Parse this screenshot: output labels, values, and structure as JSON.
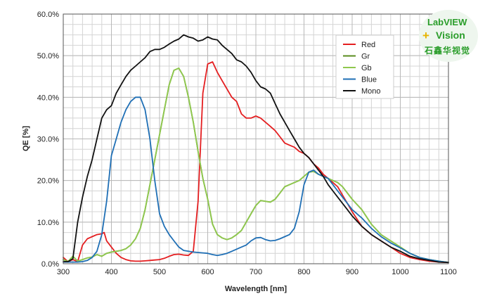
{
  "logo": {
    "line1": "LabVIEW",
    "plus": "+",
    "line2": "Vision",
    "line3": "石鑫华视觉"
  },
  "chart_data": {
    "type": "line",
    "xlabel": "Wavelength [nm]",
    "ylabel": "QE [%]",
    "xlim": [
      300,
      1100
    ],
    "ylim": [
      0,
      60
    ],
    "xticks": [
      300,
      400,
      500,
      600,
      700,
      800,
      900,
      1000,
      1100
    ],
    "yticks": [
      0,
      10,
      20,
      30,
      40,
      50,
      60
    ],
    "xtick_labels": [
      "300",
      "400",
      "500",
      "600",
      "700",
      "800",
      "900",
      "1000",
      "1100"
    ],
    "ytick_labels": [
      "0.0%",
      "10.0%",
      "20.0%",
      "30.0%",
      "40.0%",
      "50.0%",
      "60.0%"
    ],
    "grid": true,
    "legend_position": "top-right",
    "series": [
      {
        "name": "Red",
        "color": "#e41e20",
        "x": [
          300,
          310,
          320,
          330,
          340,
          350,
          360,
          370,
          380,
          385,
          390,
          400,
          410,
          420,
          430,
          440,
          450,
          460,
          470,
          480,
          490,
          500,
          510,
          520,
          530,
          540,
          550,
          560,
          570,
          580,
          590,
          600,
          610,
          620,
          630,
          640,
          650,
          660,
          670,
          680,
          690,
          700,
          710,
          720,
          730,
          740,
          750,
          760,
          770,
          780,
          790,
          800,
          810,
          820,
          830,
          840,
          850,
          860,
          870,
          880,
          890,
          900,
          920,
          940,
          960,
          980,
          1000,
          1020,
          1040,
          1060,
          1080,
          1100
        ],
        "y": [
          1.5,
          0.5,
          1.0,
          0.5,
          4.5,
          6.0,
          6.5,
          7.0,
          7.2,
          7.5,
          5.5,
          4.0,
          2.5,
          1.5,
          1.0,
          0.7,
          0.6,
          0.6,
          0.7,
          0.8,
          0.9,
          1.0,
          1.3,
          1.8,
          2.2,
          2.3,
          2.1,
          2.0,
          3.0,
          15.0,
          41.0,
          48.0,
          48.5,
          46.0,
          44.0,
          42.0,
          40.0,
          39.0,
          36.0,
          35.0,
          35.0,
          35.5,
          35.0,
          34.0,
          33.0,
          32.0,
          30.5,
          29.0,
          28.5,
          28.0,
          27.0,
          26.5,
          25.5,
          24.0,
          23.0,
          21.5,
          20.5,
          19.5,
          18.5,
          16.5,
          14.5,
          12.5,
          9.0,
          7.0,
          5.5,
          4.0,
          2.5,
          1.5,
          1.0,
          0.6,
          0.4,
          0.3
        ]
      },
      {
        "name": "Gr",
        "color": "#5a8c1e",
        "x": [
          300,
          310,
          320,
          330,
          340,
          350,
          360,
          370,
          380,
          390,
          400,
          410,
          420,
          430,
          440,
          450,
          460,
          470,
          480,
          490,
          500,
          510,
          520,
          530,
          540,
          550,
          560,
          570,
          580,
          590,
          600,
          610,
          620,
          630,
          640,
          650,
          660,
          670,
          680,
          690,
          700,
          710,
          720,
          730,
          740,
          750,
          760,
          770,
          780,
          790,
          800,
          810,
          820,
          830,
          840,
          850,
          860,
          870,
          880,
          890,
          900,
          920,
          940,
          960,
          980,
          1000,
          1020,
          1040,
          1060,
          1080,
          1100
        ],
        "y": [
          1.0,
          0.5,
          1.8,
          0.6,
          1.0,
          1.4,
          1.6,
          2.2,
          1.8,
          2.5,
          2.8,
          3.0,
          3.2,
          3.6,
          4.5,
          6.0,
          8.5,
          13.0,
          19.0,
          25.0,
          31.0,
          37.0,
          43.0,
          46.5,
          47.0,
          45.0,
          40.0,
          34.0,
          27.0,
          20.5,
          15.5,
          9.5,
          7.0,
          6.2,
          5.8,
          6.2,
          7.0,
          8.0,
          10.0,
          12.0,
          14.0,
          15.2,
          15.0,
          14.8,
          15.5,
          17.0,
          18.5,
          19.0,
          19.5,
          20.0,
          21.0,
          22.0,
          22.2,
          21.5,
          21.0,
          20.5,
          20.0,
          19.5,
          18.5,
          17.0,
          15.5,
          13.0,
          9.5,
          7.0,
          5.5,
          4.0,
          2.5,
          1.5,
          1.0,
          0.6,
          0.3
        ]
      },
      {
        "name": "Gb",
        "color": "#8fc84e",
        "x": [
          300,
          310,
          320,
          330,
          340,
          350,
          360,
          370,
          380,
          390,
          400,
          410,
          420,
          430,
          440,
          450,
          460,
          470,
          480,
          490,
          500,
          510,
          520,
          530,
          540,
          550,
          560,
          570,
          580,
          590,
          600,
          610,
          620,
          630,
          640,
          650,
          660,
          670,
          680,
          690,
          700,
          710,
          720,
          730,
          740,
          750,
          760,
          770,
          780,
          790,
          800,
          810,
          820,
          830,
          840,
          850,
          860,
          870,
          880,
          890,
          900,
          920,
          940,
          960,
          980,
          1000,
          1020,
          1040,
          1060,
          1080,
          1100
        ],
        "y": [
          1.0,
          0.5,
          1.8,
          0.6,
          1.0,
          1.4,
          1.6,
          2.2,
          1.8,
          2.5,
          2.8,
          3.0,
          3.2,
          3.6,
          4.5,
          6.0,
          8.5,
          13.0,
          19.0,
          25.0,
          31.0,
          37.0,
          43.0,
          46.5,
          47.0,
          45.0,
          40.0,
          34.0,
          27.0,
          20.5,
          15.5,
          9.5,
          7.0,
          6.2,
          5.8,
          6.2,
          7.0,
          8.0,
          10.0,
          12.0,
          14.0,
          15.2,
          15.0,
          14.8,
          15.5,
          17.0,
          18.5,
          19.0,
          19.5,
          20.0,
          21.0,
          22.0,
          22.2,
          21.5,
          21.0,
          20.5,
          20.0,
          19.5,
          18.5,
          17.0,
          15.5,
          13.0,
          9.5,
          7.0,
          5.5,
          4.0,
          2.5,
          1.5,
          1.0,
          0.6,
          0.3
        ]
      },
      {
        "name": "Blue",
        "color": "#1f6fb5",
        "x": [
          300,
          310,
          320,
          330,
          340,
          350,
          360,
          370,
          380,
          390,
          400,
          410,
          420,
          430,
          440,
          450,
          460,
          470,
          480,
          490,
          500,
          510,
          520,
          530,
          540,
          550,
          560,
          570,
          580,
          590,
          600,
          610,
          620,
          630,
          640,
          650,
          660,
          670,
          680,
          690,
          700,
          710,
          720,
          730,
          740,
          750,
          760,
          770,
          780,
          790,
          800,
          810,
          820,
          830,
          840,
          850,
          860,
          870,
          880,
          890,
          900,
          920,
          940,
          960,
          980,
          1000,
          1020,
          1040,
          1060,
          1080,
          1100
        ],
        "y": [
          0.4,
          0.4,
          0.4,
          0.4,
          0.5,
          0.8,
          1.5,
          3.0,
          7.0,
          15.0,
          26.0,
          30.0,
          34.0,
          37.0,
          39.0,
          40.0,
          40.0,
          37.0,
          30.0,
          20.0,
          12.0,
          9.0,
          7.0,
          5.5,
          4.0,
          3.2,
          3.0,
          2.8,
          2.7,
          2.6,
          2.5,
          2.2,
          2.0,
          2.2,
          2.5,
          3.0,
          3.5,
          4.0,
          4.5,
          5.5,
          6.2,
          6.3,
          5.8,
          5.5,
          5.6,
          6.0,
          6.5,
          7.0,
          8.5,
          12.5,
          19.0,
          22.0,
          22.5,
          21.5,
          21.0,
          20.5,
          19.0,
          17.5,
          16.0,
          14.5,
          13.0,
          11.0,
          8.5,
          6.5,
          5.0,
          3.8,
          2.5,
          1.5,
          1.0,
          0.6,
          0.3
        ]
      },
      {
        "name": "Mono",
        "color": "#111111",
        "x": [
          300,
          310,
          320,
          330,
          340,
          350,
          360,
          370,
          380,
          390,
          400,
          410,
          420,
          430,
          440,
          450,
          460,
          470,
          480,
          490,
          500,
          510,
          520,
          530,
          540,
          550,
          560,
          570,
          580,
          590,
          600,
          610,
          620,
          630,
          640,
          650,
          660,
          670,
          680,
          690,
          700,
          710,
          720,
          730,
          740,
          750,
          760,
          770,
          780,
          790,
          800,
          810,
          820,
          830,
          840,
          850,
          860,
          870,
          880,
          890,
          900,
          920,
          940,
          960,
          980,
          1000,
          1020,
          1040,
          1060,
          1080,
          1100
        ],
        "y": [
          0.5,
          0.5,
          1.2,
          10.0,
          16.0,
          21.0,
          25.0,
          30.0,
          35.0,
          37.0,
          38.0,
          41.0,
          43.0,
          45.0,
          46.5,
          47.5,
          48.5,
          49.5,
          51.0,
          51.5,
          51.5,
          52.0,
          52.8,
          53.5,
          54.0,
          55.0,
          54.5,
          54.2,
          53.5,
          53.8,
          54.5,
          54.0,
          53.8,
          52.5,
          51.5,
          50.5,
          49.0,
          48.5,
          47.5,
          46.0,
          44.0,
          42.5,
          42.0,
          41.0,
          38.5,
          36.0,
          34.0,
          32.0,
          30.0,
          28.0,
          26.5,
          25.5,
          24.0,
          22.5,
          21.0,
          19.0,
          17.5,
          16.0,
          14.5,
          13.0,
          11.5,
          9.0,
          7.0,
          5.5,
          4.0,
          3.0,
          1.8,
          1.2,
          0.8,
          0.4,
          0.3
        ]
      }
    ]
  }
}
